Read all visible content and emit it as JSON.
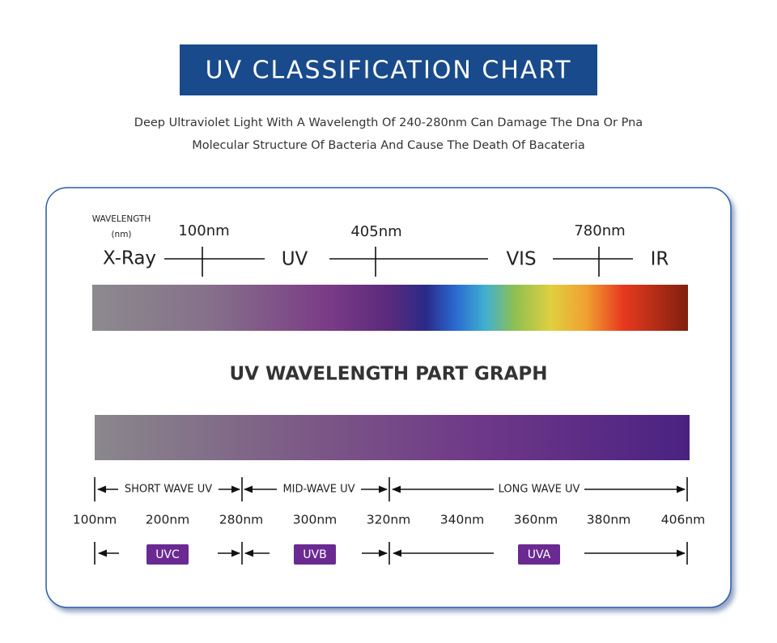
{
  "header": {
    "title": "UV CLASSIFICATION CHART",
    "subtitle": [
      "Deep Ultraviolet Light With A Wavelength Of 240-280nm Can Damage The Dna Or Pna",
      "Molecular Structure Of Bacteria And Cause The Death Of Bacateria"
    ]
  },
  "spectrum": {
    "axis_label": [
      "WAVELENGTH",
      "(nm)"
    ],
    "regions": [
      "X-Ray",
      "UV",
      "VIS",
      "IR"
    ],
    "boundaries": [
      "100nm",
      "405nm",
      "780nm"
    ]
  },
  "uv_graph": {
    "title": "UV WAVELENGTH PART GRAPH",
    "ranges": [
      "SHORT WAVE UV",
      "MID-WAVE UV",
      "LONG WAVE UV"
    ],
    "wavelengths": [
      "100nm",
      "200nm",
      "280nm",
      "300nm",
      "320nm",
      "340nm",
      "360nm",
      "380nm",
      "406nm"
    ],
    "bands": [
      "UVC",
      "UVB",
      "UVA"
    ]
  }
}
